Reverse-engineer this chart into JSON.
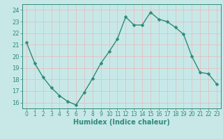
{
  "x": [
    0,
    1,
    2,
    3,
    4,
    5,
    6,
    7,
    8,
    9,
    10,
    11,
    12,
    13,
    14,
    15,
    16,
    17,
    18,
    19,
    20,
    21,
    22,
    23
  ],
  "y": [
    21.2,
    19.4,
    18.2,
    17.3,
    16.6,
    16.1,
    15.8,
    16.9,
    18.1,
    19.4,
    20.4,
    21.5,
    23.4,
    22.7,
    22.7,
    23.8,
    23.2,
    23.0,
    22.5,
    21.9,
    20.0,
    18.6,
    18.5,
    17.6
  ],
  "line_color": "#2d8b78",
  "marker": "D",
  "markersize": 2.5,
  "linewidth": 1.0,
  "bg_color": "#c8e8e8",
  "plot_bg_color": "#c8e8e8",
  "grid_color": "#e8b8b8",
  "xlabel": "Humidex (Indice chaleur)",
  "xlabel_fontsize": 7,
  "yticks": [
    16,
    17,
    18,
    19,
    20,
    21,
    22,
    23,
    24
  ],
  "xticks": [
    0,
    1,
    2,
    3,
    4,
    5,
    6,
    7,
    8,
    9,
    10,
    11,
    12,
    13,
    14,
    15,
    16,
    17,
    18,
    19,
    20,
    21,
    22,
    23
  ],
  "ylim": [
    15.5,
    24.5
  ],
  "xlim": [
    -0.5,
    23.5
  ],
  "ytick_fontsize": 6,
  "xtick_fontsize": 5.5,
  "tick_color": "#2d8b78",
  "axis_color": "#2d8b78",
  "spine_color": "#2d8b78"
}
